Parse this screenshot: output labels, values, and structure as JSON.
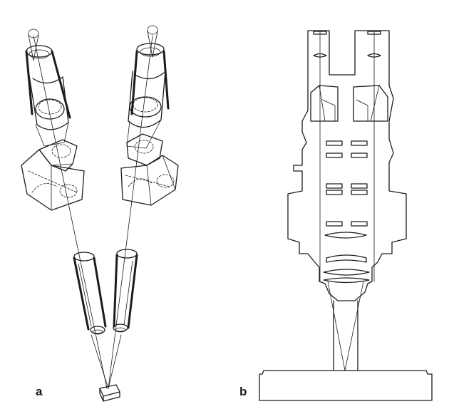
{
  "figure": {
    "panel_a": {
      "label": "a"
    },
    "panel_b": {
      "label": "b"
    }
  }
}
